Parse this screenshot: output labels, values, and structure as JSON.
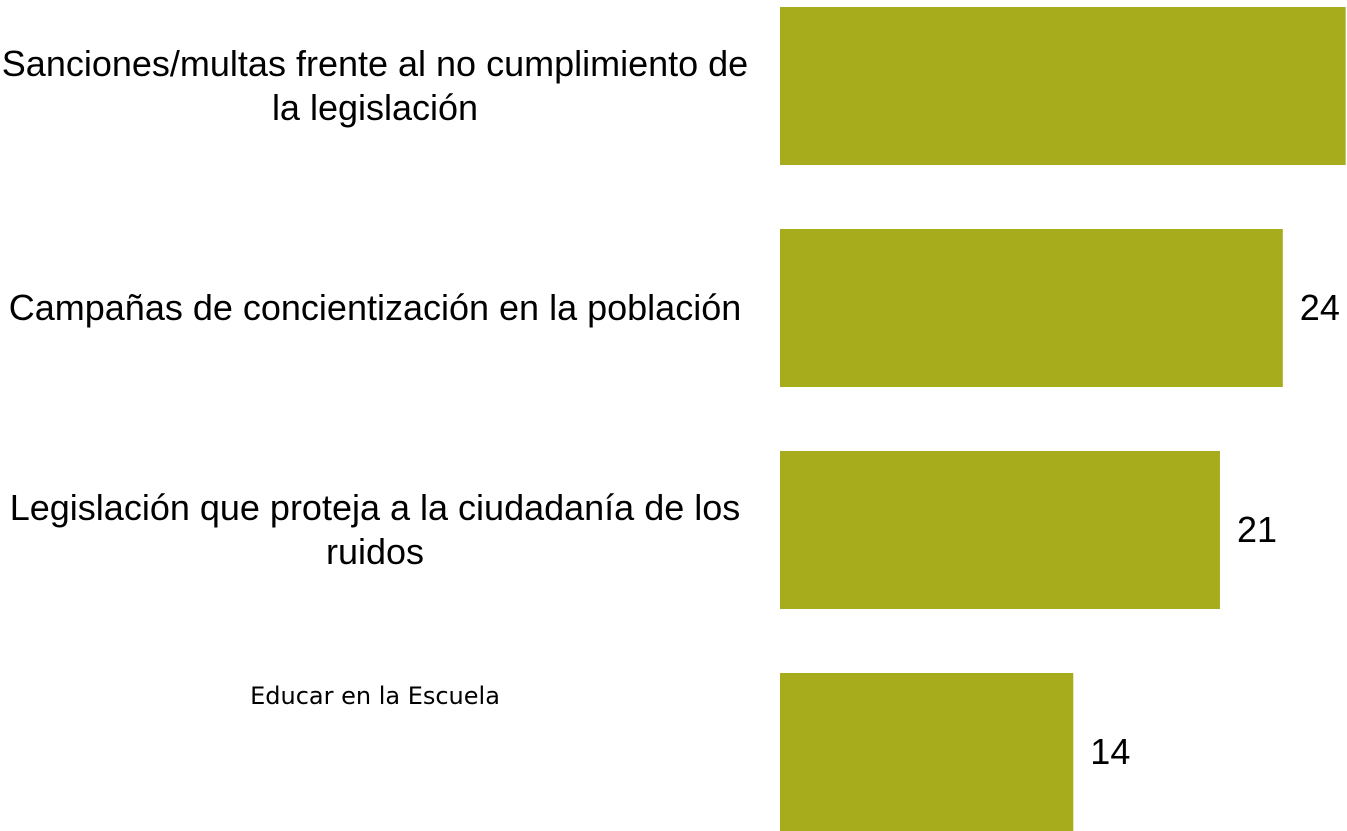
{
  "chart_data": {
    "type": "barh",
    "categories": [
      "Sanciones/multas frente al no cumplimiento de la legislación",
      "Campañas de concientización en la población",
      "Legislación que proteja a la ciudadanía de los ruidos",
      "Educar en la Escuela"
    ],
    "values": [
      27,
      24,
      21,
      14
    ],
    "color": "#a6ac1b"
  }
}
